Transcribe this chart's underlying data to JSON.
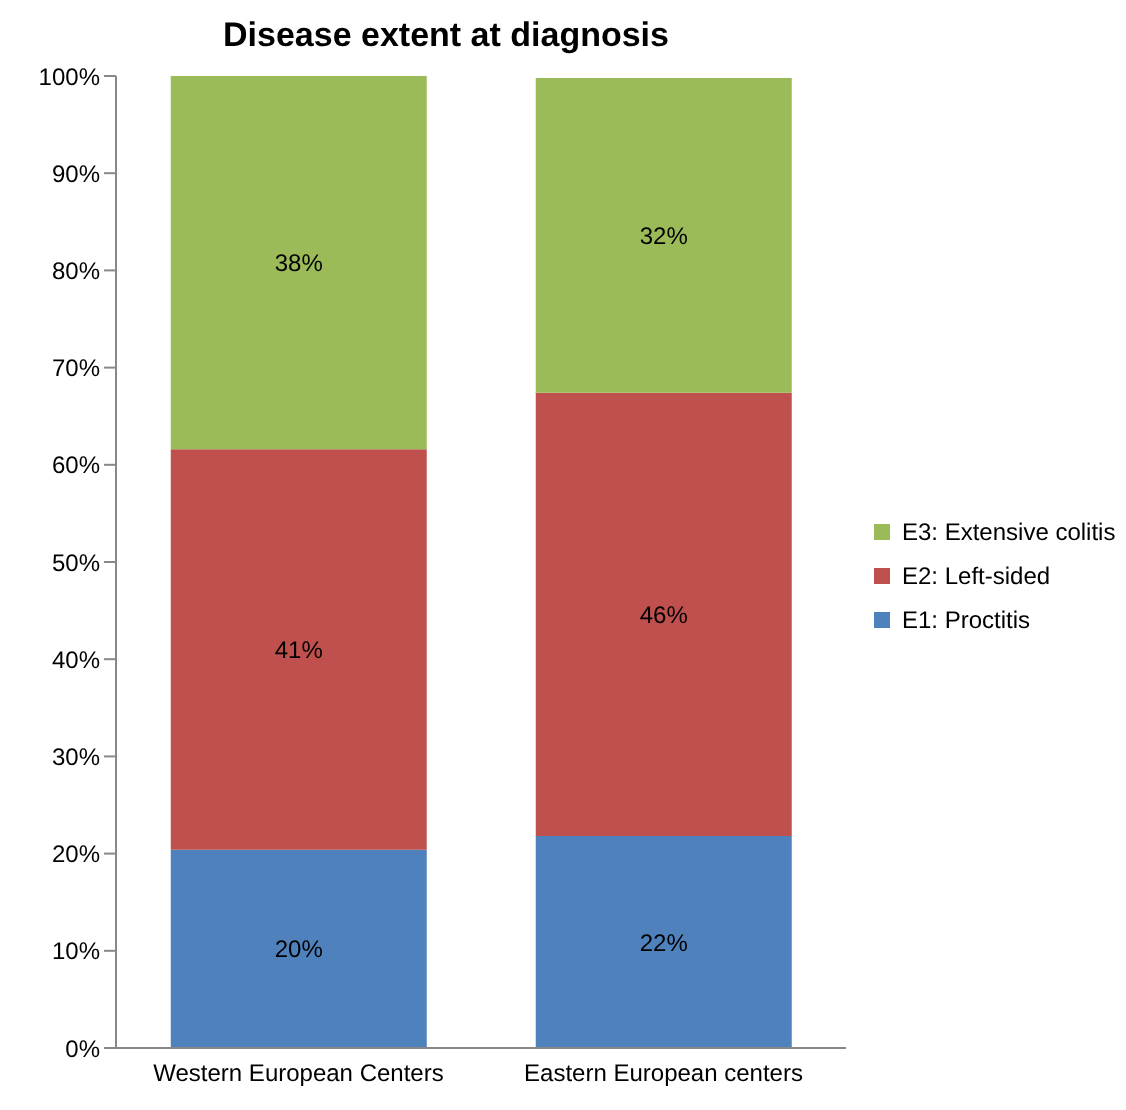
{
  "chart_data": {
    "type": "bar",
    "title": "Disease extent at diagnosis",
    "stacked": true,
    "categories": [
      "Western European Centers",
      "Eastern European centers"
    ],
    "series": [
      {
        "name": "E1: Proctitis",
        "color": "#4f81bd",
        "values": [
          20.4,
          21.8
        ],
        "value_labels": [
          "20%",
          "22%"
        ]
      },
      {
        "name": "E2: Left-sided",
        "color": "#c0504d",
        "values": [
          41.2,
          45.6
        ],
        "value_labels": [
          "41%",
          "46%"
        ]
      },
      {
        "name": "E3: Extensive colitis",
        "color": "#9bbb59",
        "values": [
          38.4,
          32.4
        ],
        "value_labels": [
          "38%",
          "32%"
        ]
      }
    ],
    "ylim": [
      0,
      100
    ],
    "yticks": [
      {
        "value": 0,
        "label": "0%"
      },
      {
        "value": 10,
        "label": "10%"
      },
      {
        "value": 20,
        "label": "20%"
      },
      {
        "value": 30,
        "label": "30%"
      },
      {
        "value": 40,
        "label": "40%"
      },
      {
        "value": 50,
        "label": "50%"
      },
      {
        "value": 60,
        "label": "60%"
      },
      {
        "value": 70,
        "label": "70%"
      },
      {
        "value": 80,
        "label": "80%"
      },
      {
        "value": 90,
        "label": "90%"
      },
      {
        "value": 100,
        "label": "100%"
      }
    ],
    "grid": false,
    "legend": "right"
  }
}
